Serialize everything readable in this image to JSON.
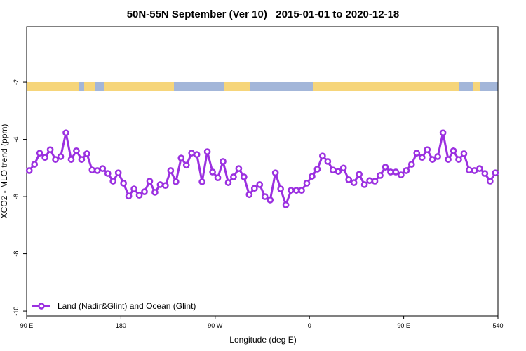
{
  "chart_data": {
    "type": "line",
    "title": "50N-55N September (Ver 10)   2015-01-01 to 2020-12-18",
    "xlabel": "Longitude (deg E)",
    "ylabel": "XCO2 - MLO trend (ppm)",
    "xlim": [
      90,
      540
    ],
    "ylim": [
      -10.17,
      -0.06
    ],
    "xticks": [
      {
        "value": 90,
        "label": "90 E"
      },
      180,
      {
        "value": 270,
        "label": "90 W"
      },
      {
        "value": 360,
        "label": "0"
      },
      {
        "value": 450,
        "label": "90 E"
      },
      540
    ],
    "yticks": [
      -2,
      -4,
      -6,
      -8,
      -10
    ],
    "legend_position": "lower left",
    "x": [
      92.5,
      97.5,
      102.5,
      107.5,
      112.5,
      117.5,
      122.5,
      127.5,
      132.5,
      137.5,
      142.5,
      147.5,
      152.5,
      157.5,
      162.5,
      167.5,
      172.5,
      177.5,
      182.5,
      187.5,
      192.5,
      197.5,
      202.5,
      207.5,
      212.5,
      217.5,
      222.5,
      227.5,
      232.5,
      237.5,
      242.5,
      247.5,
      252.5,
      257.5,
      262.5,
      267.5,
      272.5,
      277.5,
      282.5,
      287.5,
      292.5,
      297.5,
      302.5,
      307.5,
      312.5,
      317.5,
      322.5,
      327.5,
      332.5,
      337.5,
      342.5,
      347.5,
      352.5,
      357.5,
      362.5,
      367.5,
      372.5,
      377.5,
      382.5,
      387.5,
      392.5,
      397.5,
      402.5,
      407.5,
      412.5,
      417.5,
      422.5,
      427.5,
      432.5,
      437.5,
      442.5,
      447.5,
      452.5,
      457.5,
      462.5,
      467.5,
      472.5,
      477.5,
      482.5,
      487.5,
      492.5,
      497.5,
      502.5,
      507.5,
      512.5,
      517.5,
      522.5,
      527.5,
      532.5,
      537.5
    ],
    "series": [
      {
        "name": "Land (Nadir&Glint) and Ocean (Glint)",
        "color": "#9b30e0",
        "values": [
          -5.09,
          -4.87,
          -4.48,
          -4.63,
          -4.36,
          -4.7,
          -4.6,
          -3.77,
          -4.7,
          -4.4,
          -4.7,
          -4.5,
          -5.07,
          -5.09,
          -5.02,
          -5.19,
          -5.46,
          -5.17,
          -5.53,
          -5.98,
          -5.73,
          -5.95,
          -5.83,
          -5.46,
          -5.85,
          -5.58,
          -5.61,
          -5.09,
          -5.48,
          -4.65,
          -4.9,
          -4.48,
          -4.53,
          -5.48,
          -4.43,
          -5.14,
          -5.34,
          -4.77,
          -5.51,
          -5.31,
          -5.02,
          -5.31,
          -5.93,
          -5.71,
          -5.58,
          -6.0,
          -6.12,
          -5.17,
          -5.73,
          -6.29,
          -5.78,
          -5.78,
          -5.78,
          -5.53,
          -5.29,
          -5.04,
          -4.58,
          -4.77,
          -5.07,
          -5.12,
          -5.0,
          -5.41,
          -5.51,
          -5.22,
          -5.58,
          -5.44,
          -5.46,
          -5.26,
          -4.97,
          -5.14,
          -5.14,
          -5.24,
          -5.09,
          -4.87,
          -4.48,
          -4.63,
          -4.36,
          -4.7,
          -4.6,
          -3.77,
          -4.7,
          -4.4,
          -4.7,
          -4.5,
          -5.07,
          -5.09,
          -5.02,
          -5.19,
          -5.46,
          -5.17
        ]
      }
    ]
  }
}
